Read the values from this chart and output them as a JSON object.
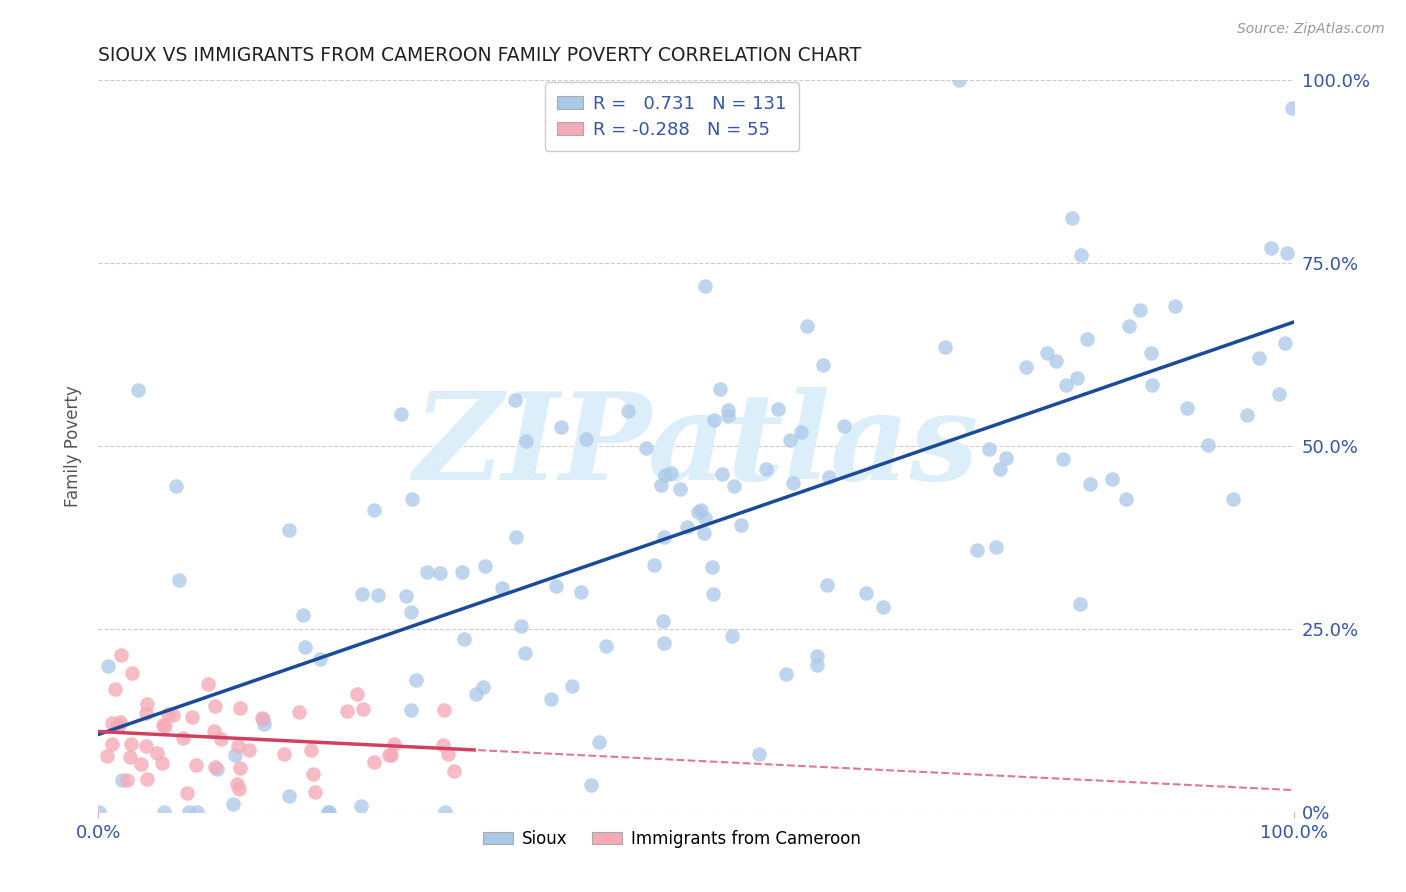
{
  "title": "SIOUX VS IMMIGRANTS FROM CAMEROON FAMILY POVERTY CORRELATION CHART",
  "source_text": "Source: ZipAtlas.com",
  "ylabel": "Family Poverty",
  "xlim": [
    0.0,
    1.0
  ],
  "ylim": [
    0.0,
    1.0
  ],
  "ytick_positions": [
    0.0,
    0.25,
    0.5,
    0.75,
    1.0
  ],
  "ytick_labels_right": [
    "0%",
    "25.0%",
    "50.0%",
    "75.0%",
    "100.0%"
  ],
  "xtick_positions": [
    0.0,
    1.0
  ],
  "xtick_labels": [
    "0.0%",
    "100.0%"
  ],
  "legend_R1": "0.731",
  "legend_N1": "131",
  "legend_R2": "-0.288",
  "legend_N2": "55",
  "legend_label1": "Sioux",
  "legend_label2": "Immigrants from Cameroon",
  "blue_scatter_color": "#aac8e8",
  "pink_scatter_color": "#f5aab8",
  "blue_line_color": "#1a4a9a",
  "pink_line_color": "#d04060",
  "background_color": "#ffffff",
  "grid_color": "#cccccc",
  "title_color": "#222222",
  "tick_color": "#3355aa",
  "watermark_text": "ZIPatlas",
  "watermark_color": "#dceefa",
  "seed": 12345
}
